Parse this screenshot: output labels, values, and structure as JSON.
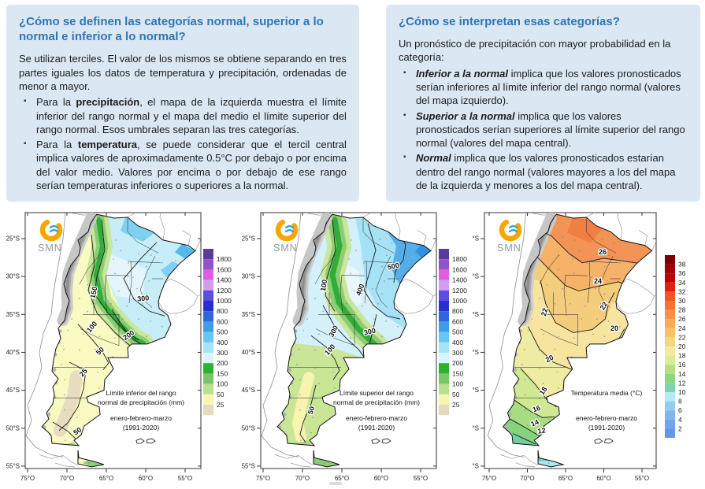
{
  "left_box": {
    "title": "¿Cómo se definen las categorías normal, superior a lo normal e inferior a lo normal?",
    "intro": "Se utilizan terciles. El valor de los mismos se obtiene separando en tres partes iguales los datos de temperatura y precipitación, ordenadas de menor a mayor.",
    "bullets": [
      {
        "pre": "Para la ",
        "bold": "precipitación",
        "post": ", el mapa de la izquierda muestra el límite inferior del rango normal y el mapa del medio el límite superior del rango normal. Esos umbrales separan las tres categorías."
      },
      {
        "pre": "Para la ",
        "bold": "temperatura",
        "post": ", se puede considerar que el tercil central implica valores de aproximadamente 0.5°C por debajo o por encima del valor medio. Valores por encima o por debajo de ese rango serían temperaturas inferiores o superiores a la normal."
      }
    ]
  },
  "right_box": {
    "title": "¿Cómo se interpretan esas categorías?",
    "intro": "Un pronóstico de precipitación con mayor probabilidad en la categoría:",
    "bullets": [
      {
        "bold": "Inferior a la normal",
        "post": " implica que los valores pronosticados serían inferiores al límite inferior del rango normal (valores del mapa izquierdo)."
      },
      {
        "bold": "Superior a la normal",
        "post": " implica que los valores pronosticados serían superiores al límite superior del rango normal (valores del mapa central)."
      },
      {
        "bold": "Normal",
        "post": " implica que los valores pronosticados estarían dentro del rango normal (valores mayores a los del mapa de la izquierda y menores a los del mapa central)."
      }
    ]
  },
  "colors": {
    "box_bg": "#dbe8f4",
    "title_blue": "#2e75b6",
    "bullet_navy": "#1f3864",
    "logo_orange": "#f7a600",
    "logo_waves_blue": "#2aa3dc"
  },
  "maps": [
    {
      "id": "precip-lower",
      "logo": "SMN",
      "caption": [
        "Límite inferior del rango",
        "normal de precipitación (mm)"
      ],
      "period": [
        "enero-febrero-marzo",
        "(1991-2020)"
      ],
      "x_ticks": [
        "75°O",
        "70°O",
        "65°O",
        "60°O",
        "55°O"
      ],
      "y_ticks": [
        "25°S",
        "30°S",
        "35°S",
        "40°S",
        "45°S",
        "50°S",
        "55°S"
      ],
      "legend_values": [
        "1800",
        "1600",
        "1400",
        "1200",
        "1000",
        "800",
        "600",
        "500",
        "400",
        "300",
        "200",
        "150",
        "100",
        "50",
        "25"
      ],
      "legend_colors": [
        "#5b3a9b",
        "#9452c8",
        "#e05ce0",
        "#cf9ef0",
        "#5a4fe0",
        "#2a2ed2",
        "#2f66e0",
        "#3f9ce9",
        "#66c8f2",
        "#a6e3f8",
        "#d9f4fc",
        "#2eb22e",
        "#7ac56a",
        "#b9df90",
        "#f8f6ae",
        "#e6d9bd"
      ],
      "contour_labels": [
        "300",
        "150",
        "100",
        "200",
        "50",
        "25",
        "50"
      ]
    },
    {
      "id": "precip-upper",
      "logo": "SMN",
      "caption": [
        "Límite superior del rango",
        "normal de precipitación (mm)"
      ],
      "period": [
        "enero-febrero-marzo",
        "(1991-2020)"
      ],
      "x_ticks": [
        "75°O",
        "70°O",
        "65°O",
        "60°O",
        "55°O"
      ],
      "y_ticks": [
        "25°S",
        "30°S",
        "35°S",
        "40°S",
        "45°S",
        "50°S",
        "55°S"
      ],
      "legend_values": [
        "1800",
        "1600",
        "1400",
        "1200",
        "1000",
        "800",
        "600",
        "500",
        "400",
        "300",
        "200",
        "150",
        "100",
        "50",
        "25"
      ],
      "legend_colors": [
        "#5b3a9b",
        "#9452c8",
        "#e05ce0",
        "#cf9ef0",
        "#5a4fe0",
        "#2a2ed2",
        "#2f66e0",
        "#3f9ce9",
        "#66c8f2",
        "#a6e3f8",
        "#d9f4fc",
        "#2eb22e",
        "#7ac56a",
        "#b9df90",
        "#f8f6ae",
        "#e6d9bd"
      ],
      "contour_labels": [
        "500",
        "400",
        "100",
        "300",
        "300",
        "100",
        "50"
      ]
    },
    {
      "id": "temp-mean",
      "logo": "SMN",
      "caption": [
        "Temperatura media (°C)"
      ],
      "period": [
        "enero-febrero-marzo",
        "(1991-2020)"
      ],
      "x_ticks": [
        "75°O",
        "70°O",
        "65°O",
        "60°O",
        "55°O"
      ],
      "y_ticks": [
        "25°S",
        "30°S",
        "35°S",
        "40°S",
        "45°S",
        "50°S",
        "55°S"
      ],
      "legend_values": [
        "38",
        "36",
        "34",
        "32",
        "30",
        "28",
        "26",
        "24",
        "22",
        "20",
        "18",
        "16",
        "14",
        "12",
        "10",
        "8",
        "6",
        "4",
        "2"
      ],
      "legend_colors": [
        "#7a0005",
        "#a00007",
        "#c00009",
        "#e02014",
        "#ee5628",
        "#f37439",
        "#f6914c",
        "#f8aa5d",
        "#f5c36c",
        "#f2d883",
        "#f4e8a3",
        "#dcec95",
        "#b4e184",
        "#8bd77e",
        "#7fd4b0",
        "#b6eaf4",
        "#93cdf0",
        "#7fb7ec",
        "#70a5e9",
        "#6497e6"
      ],
      "contour_labels": [
        "26",
        "24",
        "22",
        "22",
        "20",
        "20",
        "18",
        "16",
        "14",
        "12"
      ]
    }
  ]
}
